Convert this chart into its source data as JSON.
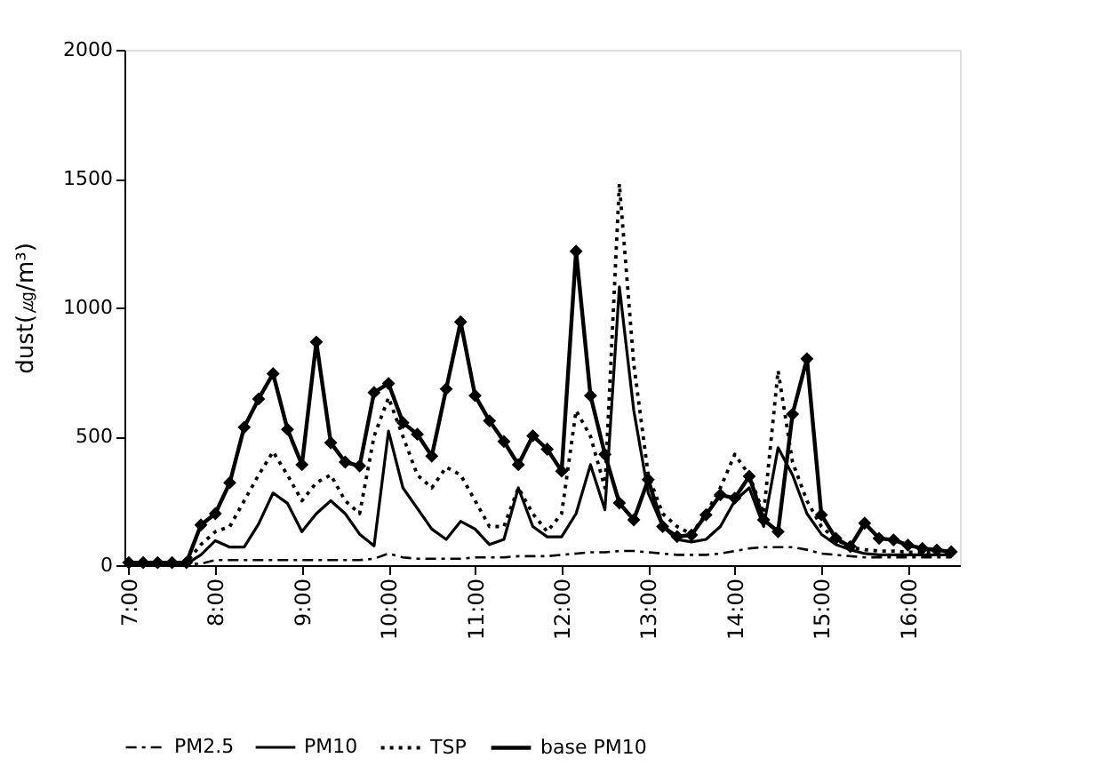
{
  "chart_data": {
    "type": "line",
    "ylabel": "dust(㎍/m³)",
    "x": [
      7.0,
      7.1667,
      7.3333,
      7.5,
      7.6667,
      7.8333,
      8.0,
      8.1667,
      8.3333,
      8.5,
      8.6667,
      8.8333,
      9.0,
      9.1667,
      9.3333,
      9.5,
      9.6667,
      9.8333,
      10.0,
      10.1667,
      10.3333,
      10.5,
      10.6667,
      10.8333,
      11.0,
      11.1667,
      11.3333,
      11.5,
      11.6667,
      11.8333,
      12.0,
      12.1667,
      12.3333,
      12.5,
      12.6667,
      12.8333,
      13.0,
      13.1667,
      13.3333,
      13.5,
      13.6667,
      13.8333,
      14.0,
      14.1667,
      14.3333,
      14.5,
      14.6667,
      14.8333,
      15.0,
      15.1667,
      15.3333,
      15.5,
      15.6667,
      15.8333,
      16.0,
      16.1667,
      16.3333,
      16.5
    ],
    "series": [
      {
        "name": "PM2.5",
        "color": "#000000",
        "line_style": "dashed",
        "marker": "none",
        "values": [
          5,
          5,
          5,
          5,
          5,
          5,
          20,
          20,
          20,
          20,
          20,
          20,
          20,
          20,
          20,
          20,
          20,
          25,
          45,
          30,
          25,
          25,
          25,
          25,
          30,
          30,
          30,
          35,
          35,
          35,
          40,
          45,
          50,
          50,
          55,
          55,
          50,
          45,
          40,
          40,
          40,
          45,
          55,
          65,
          70,
          70,
          70,
          60,
          45,
          40,
          35,
          30,
          30,
          30,
          30,
          30,
          30,
          30
        ]
      },
      {
        "name": "PM10",
        "color": "#000000",
        "line_style": "solid",
        "marker": "none",
        "values": [
          5,
          5,
          5,
          5,
          5,
          40,
          95,
          70,
          70,
          160,
          280,
          240,
          130,
          200,
          250,
          200,
          120,
          75,
          520,
          300,
          220,
          140,
          100,
          170,
          140,
          80,
          100,
          300,
          150,
          110,
          110,
          200,
          390,
          215,
          1080,
          600,
          280,
          150,
          100,
          90,
          100,
          150,
          250,
          300,
          150,
          456,
          350,
          200,
          120,
          80,
          60,
          45,
          40,
          40,
          40,
          40,
          40,
          40
        ]
      },
      {
        "name": "TSP",
        "color": "#000000",
        "line_style": "dotted",
        "marker": "none",
        "values": [
          10,
          10,
          10,
          10,
          10,
          80,
          130,
          150,
          250,
          350,
          440,
          350,
          250,
          320,
          350,
          250,
          200,
          500,
          650,
          500,
          350,
          300,
          380,
          350,
          250,
          150,
          150,
          300,
          200,
          130,
          200,
          600,
          500,
          300,
          1480,
          780,
          350,
          200,
          150,
          120,
          200,
          300,
          430,
          350,
          200,
          755,
          400,
          250,
          150,
          100,
          70,
          60,
          55,
          55,
          50,
          50,
          50,
          50
        ]
      },
      {
        "name": "base  PM10",
        "color": "#000000",
        "line_style": "solid",
        "marker": "diamond",
        "values": [
          10,
          10,
          10,
          10,
          10,
          156,
          200,
          320,
          535,
          645,
          743,
          527,
          390,
          866,
          475,
          400,
          385,
          670,
          705,
          553,
          508,
          423,
          684,
          944,
          658,
          560,
          480,
          390,
          502,
          450,
          365,
          1218,
          658,
          430,
          241,
          176,
          332,
          150,
          111,
          117,
          195,
          273,
          260,
          345,
          176,
          130,
          586,
          801,
          195,
          104,
          72,
          163,
          104,
          98,
          78,
          65,
          59,
          52
        ]
      }
    ],
    "xlim": [
      6.95,
      16.6
    ],
    "xticks": [
      {
        "value": 7,
        "label": "7:00"
      },
      {
        "value": 8,
        "label": "8:00"
      },
      {
        "value": 9,
        "label": "9:00"
      },
      {
        "value": 10,
        "label": "10:00"
      },
      {
        "value": 11,
        "label": "11:00"
      },
      {
        "value": 12,
        "label": "12:00"
      },
      {
        "value": 13,
        "label": "13:00"
      },
      {
        "value": 14,
        "label": "14:00"
      },
      {
        "value": 15,
        "label": "15:00"
      },
      {
        "value": 16,
        "label": "16:00"
      }
    ],
    "ylim": [
      0,
      2000
    ],
    "yticks": [
      0,
      500,
      1000,
      1500,
      2000
    ],
    "grid": false,
    "legend": "bottom"
  }
}
